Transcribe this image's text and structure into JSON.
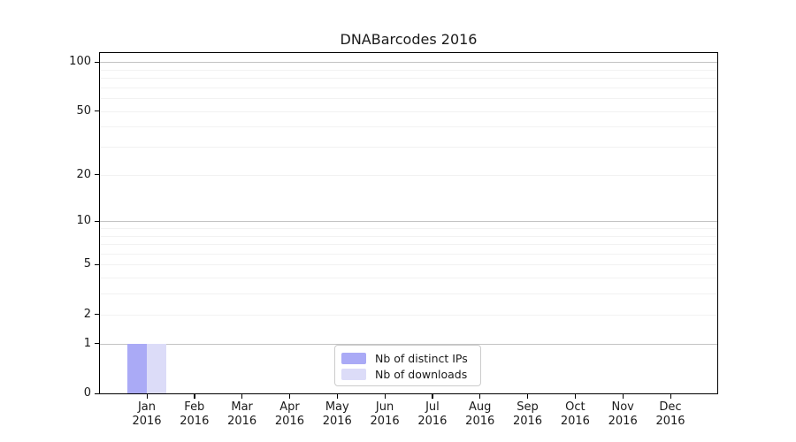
{
  "title": "DNABarcodes 2016",
  "chart_data": {
    "type": "bar",
    "title": "DNABarcodes 2016",
    "xlabel": "",
    "ylabel": "",
    "x_tick_labels": [
      [
        "Jan",
        "2016"
      ],
      [
        "Feb",
        "2016"
      ],
      [
        "Mar",
        "2016"
      ],
      [
        "Apr",
        "2016"
      ],
      [
        "May",
        "2016"
      ],
      [
        "Jun",
        "2016"
      ],
      [
        "Jul",
        "2016"
      ],
      [
        "Aug",
        "2016"
      ],
      [
        "Sep",
        "2016"
      ],
      [
        "Oct",
        "2016"
      ],
      [
        "Nov",
        "2016"
      ],
      [
        "Dec",
        "2016"
      ]
    ],
    "series": [
      {
        "name": "Nb of distinct IPs",
        "color": "#aaaaf6",
        "values": [
          1,
          0,
          0,
          0,
          0,
          0,
          0,
          0,
          0,
          0,
          0,
          0
        ]
      },
      {
        "name": "Nb of downloads",
        "color": "#dcdcf8",
        "values": [
          1,
          0,
          0,
          0,
          0,
          0,
          0,
          0,
          0,
          0,
          0,
          0
        ]
      }
    ],
    "y_axis": {
      "scale": "log1p",
      "ticks": [
        0,
        1,
        2,
        5,
        10,
        20,
        50,
        100
      ],
      "major_gridlines": [
        1,
        10,
        100
      ],
      "minor_gridlines": [
        2,
        3,
        4,
        5,
        6,
        7,
        8,
        9,
        20,
        30,
        40,
        50,
        60,
        70,
        80,
        90
      ],
      "min": 0,
      "max": 113.5
    },
    "grid": "on",
    "legend_position": "lower center"
  },
  "colors": {
    "bar_distinct_ips": "#aaaaf6",
    "bar_downloads": "#dcdcf8",
    "major_grid": "#c3c3c3",
    "minor_grid": "#f2f2f2",
    "axis": "#000000",
    "text": "#1a1a1a",
    "legend_border": "#cccccc",
    "background": "#ffffff"
  }
}
